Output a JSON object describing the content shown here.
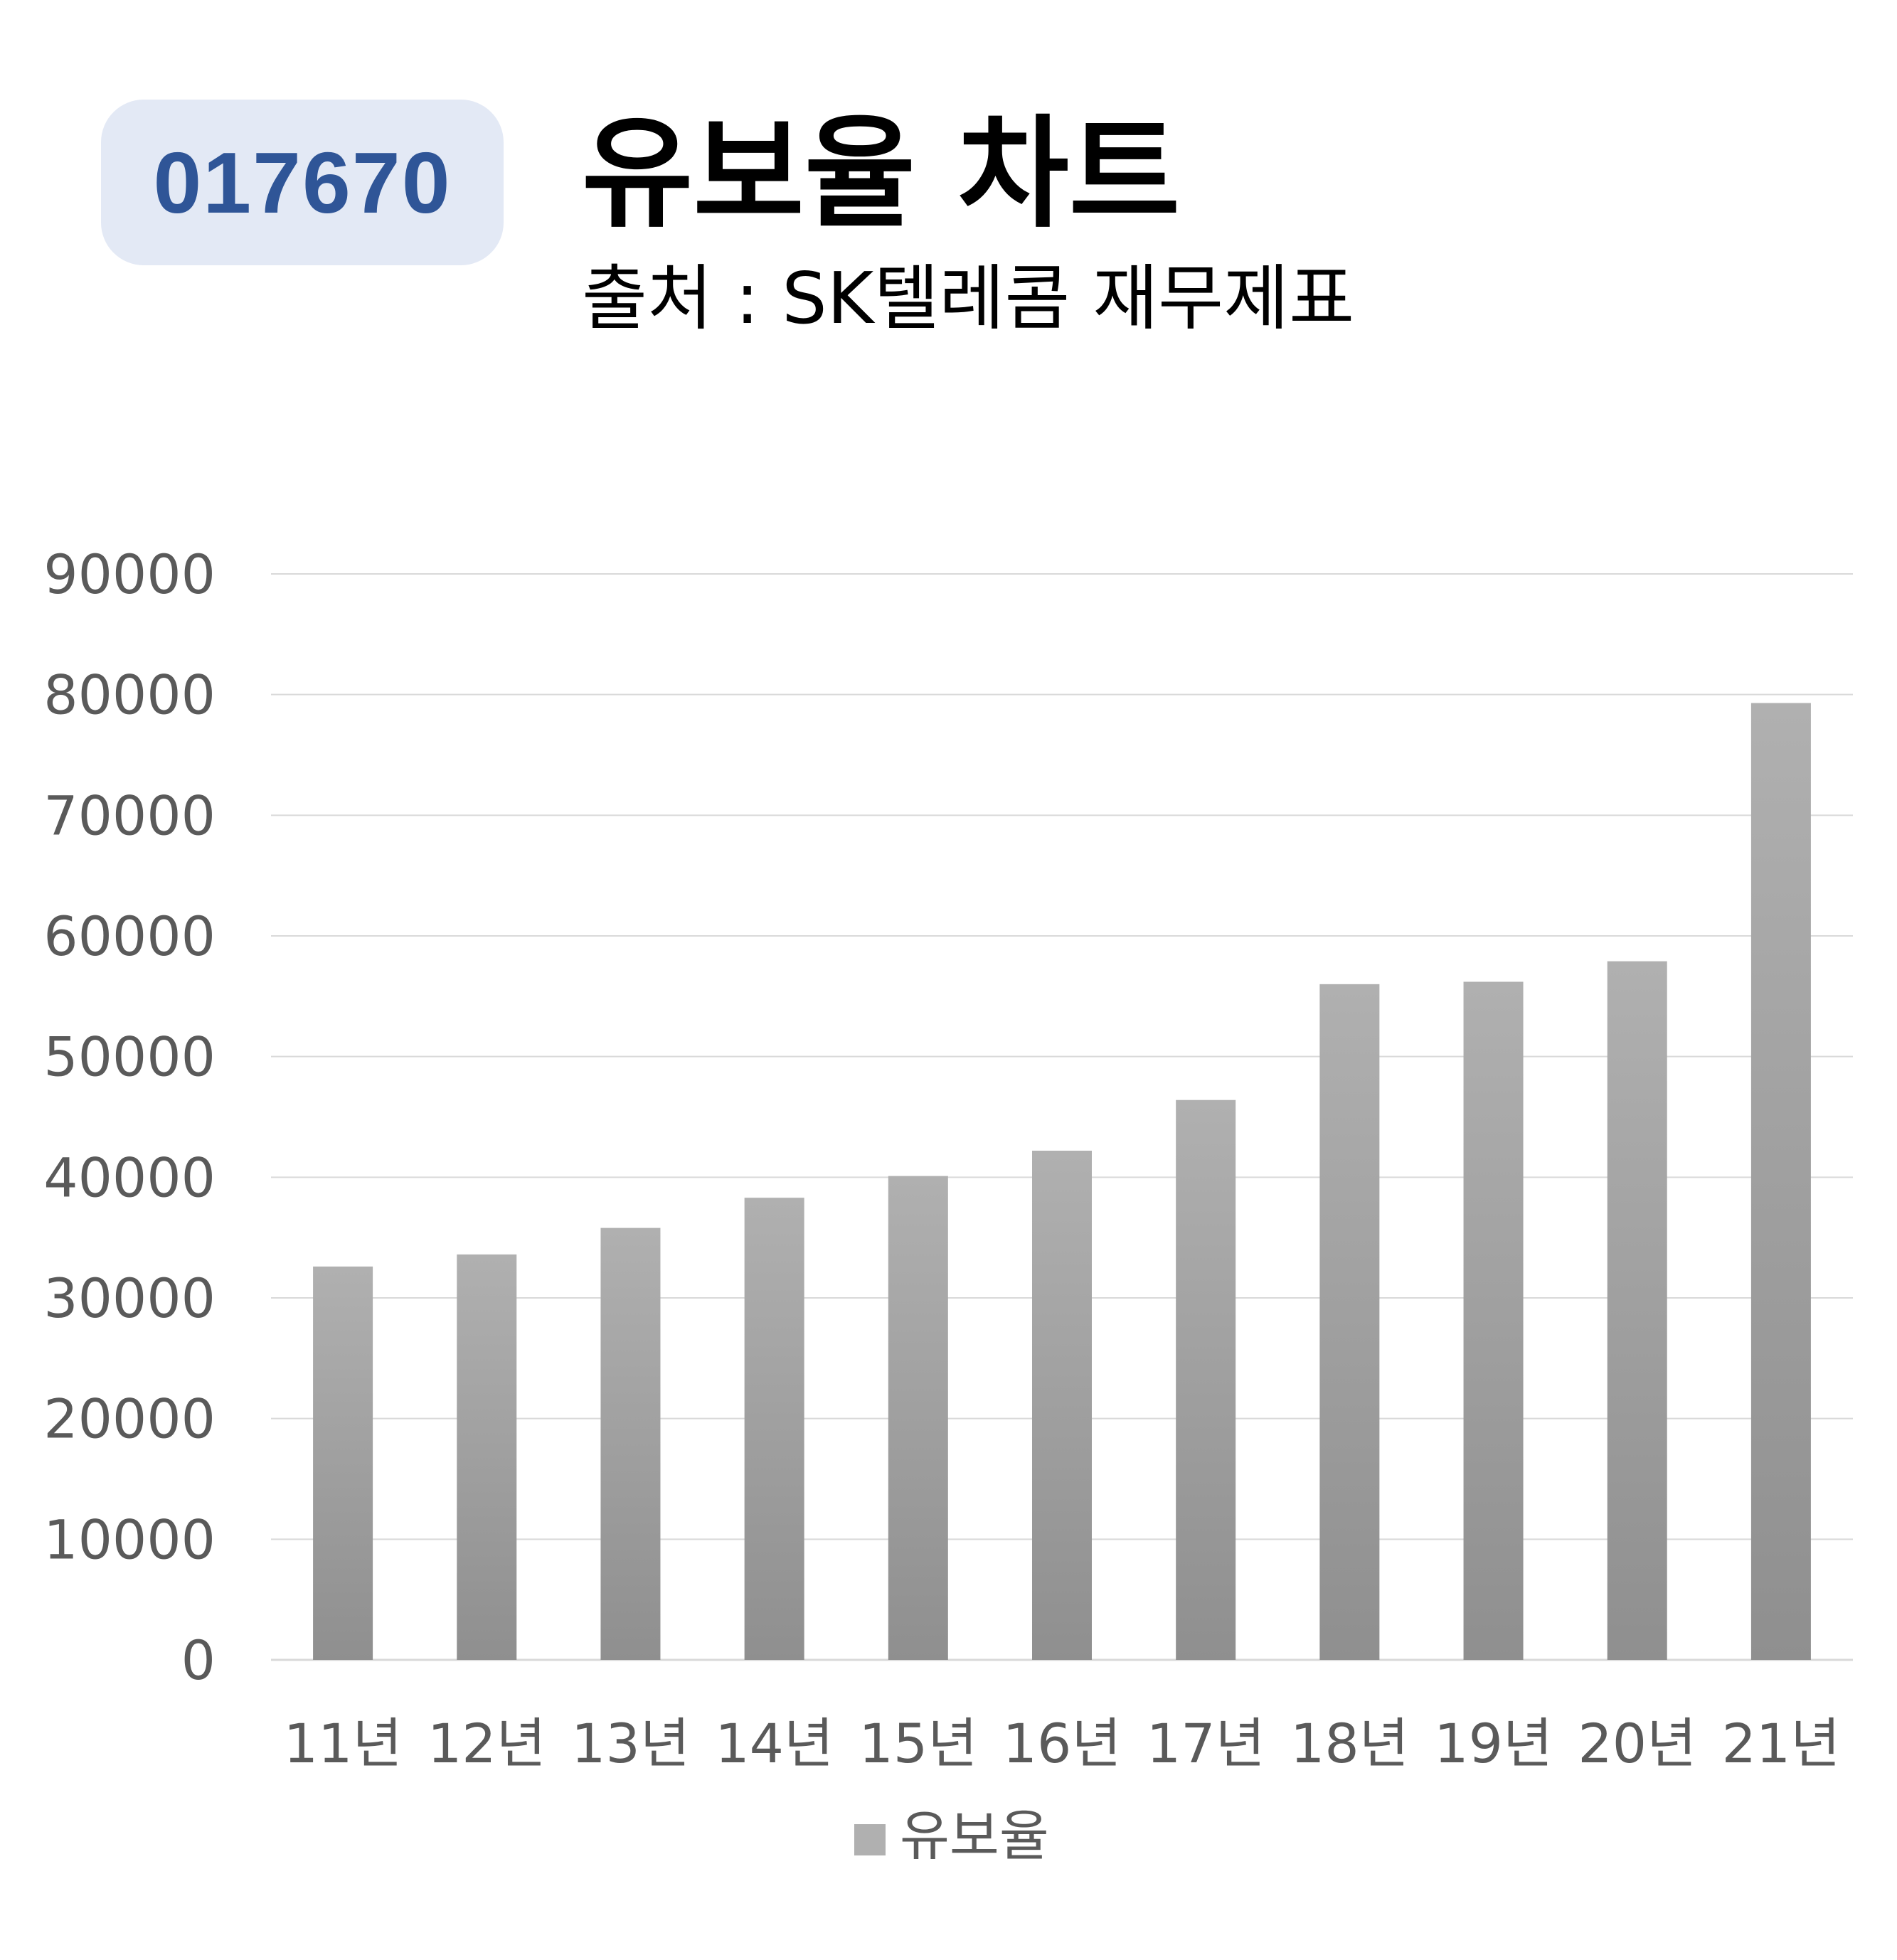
{
  "header": {
    "code_badge": "017670",
    "title": "유보율 차트",
    "subtitle": "출처 : SK텔레콤 재무제표"
  },
  "colors": {
    "badge_bg": "#e3e9f5",
    "badge_text": "#2f5597",
    "bar_top": "#b0b0b0",
    "bar_bottom": "#8f8f8f",
    "grid": "#d9d9d9"
  },
  "chart_data": {
    "type": "bar",
    "title": "유보율 차트",
    "subtitle": "출처 : SK텔레콤 재무제표",
    "categories": [
      "11년",
      "12년",
      "13년",
      "14년",
      "15년",
      "16년",
      "17년",
      "18년",
      "19년",
      "20년",
      "21년"
    ],
    "series": [
      {
        "name": "유보율",
        "values": [
          32600,
          33600,
          35800,
          38300,
          40100,
          42200,
          46400,
          56000,
          56200,
          57900,
          79300
        ]
      }
    ],
    "yticks": [
      "0",
      "10000",
      "20000",
      "30000",
      "40000",
      "50000",
      "60000",
      "70000",
      "80000",
      "90000"
    ],
    "ylim": [
      0,
      90000
    ],
    "xlabel": "",
    "ylabel": "",
    "grid": true,
    "legend": "bottom"
  }
}
